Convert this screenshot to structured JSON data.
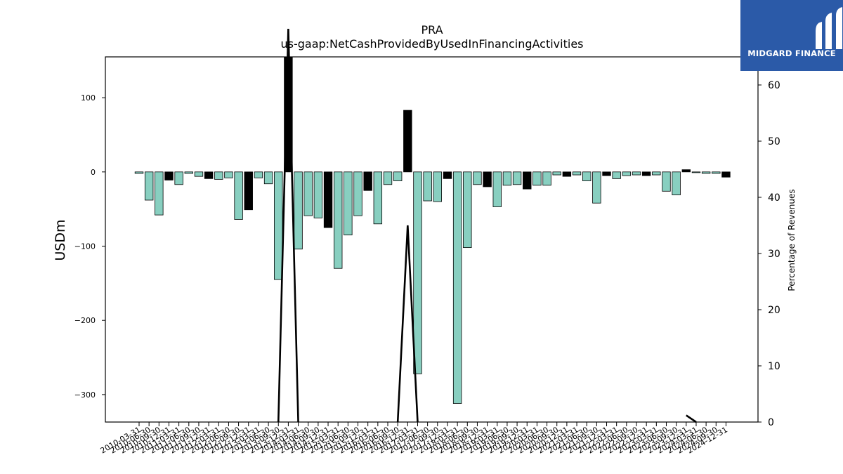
{
  "brand": {
    "name": "MIDGARD FINANCE",
    "bg": "#2b5aa8"
  },
  "chart_data": {
    "type": "bar",
    "title": "PRA",
    "subtitle": "us-gaap:NetCashProvidedByUsedInFinancingActivities",
    "ylabel": "USDm",
    "y2label": "Percentage of Revenues",
    "ylim": [
      -337,
      155
    ],
    "y2lim": [
      0,
      65
    ],
    "yticks": [
      -300,
      -200,
      -100,
      0,
      100
    ],
    "y2ticks": [
      0,
      10,
      20,
      30,
      40,
      50,
      60
    ],
    "colors": {
      "qoq": "#88cfc0",
      "annual": "#000000",
      "edge": "#000000"
    },
    "categories": [
      "2010-03-31",
      "2010-06-30",
      "2010-09-30",
      "2010-12-31",
      "2011-03-31",
      "2011-06-30",
      "2011-09-30",
      "2011-12-31",
      "2012-03-31",
      "2012-06-30",
      "2012-09-30",
      "2012-12-31",
      "2013-03-31",
      "2013-06-30",
      "2013-09-30",
      "2013-12-31",
      "2014-03-31",
      "2014-06-30",
      "2014-09-30",
      "2014-12-31",
      "2015-03-31",
      "2015-06-30",
      "2015-09-30",
      "2015-12-31",
      "2016-03-31",
      "2016-06-30",
      "2016-09-30",
      "2016-12-31",
      "2017-03-31",
      "2017-06-30",
      "2017-09-30",
      "2017-12-31",
      "2018-03-31",
      "2018-06-30",
      "2018-09-30",
      "2018-12-31",
      "2019-03-31",
      "2019-06-30",
      "2019-09-30",
      "2019-12-31",
      "2020-03-31",
      "2020-06-30",
      "2020-09-30",
      "2020-12-31",
      "2021-03-31",
      "2021-06-30",
      "2021-09-30",
      "2021-12-31",
      "2022-03-31",
      "2022-06-30",
      "2022-09-30",
      "2022-12-31",
      "2023-03-31",
      "2023-06-30",
      "2023-09-30",
      "2023-12-31",
      "2024-03-31",
      "2024-06-30",
      "2024-09-30",
      "2024-12-31"
    ],
    "values": [
      -2,
      -38,
      -58,
      -11,
      -17,
      -2,
      -6,
      -9,
      -10,
      -8,
      -64,
      -51,
      -8,
      -16,
      -145,
      155,
      -104,
      -59,
      -62,
      -75,
      -130,
      -85,
      -59,
      -25,
      -70,
      -17,
      -12,
      83,
      -272,
      -39,
      -40,
      -9,
      -312,
      -102,
      -17,
      -20,
      -47,
      -18,
      -17,
      -23,
      -18,
      -18,
      -4,
      -6,
      -4,
      -12,
      -42,
      -5,
      -9,
      -5,
      -4,
      -5,
      -4,
      -26,
      -31,
      3,
      -1,
      -2,
      -2,
      -7
    ],
    "annual_flags": [
      0,
      0,
      0,
      1,
      0,
      0,
      0,
      1,
      0,
      0,
      0,
      1,
      0,
      0,
      0,
      1,
      0,
      0,
      0,
      1,
      0,
      0,
      0,
      1,
      0,
      0,
      0,
      1,
      0,
      0,
      0,
      1,
      0,
      0,
      0,
      1,
      0,
      0,
      0,
      1,
      0,
      0,
      0,
      1,
      0,
      0,
      0,
      1,
      0,
      0,
      0,
      1,
      0,
      0,
      0,
      1,
      0,
      0,
      0,
      1
    ],
    "pct_revenues": [
      null,
      null,
      null,
      null,
      null,
      null,
      null,
      null,
      null,
      null,
      null,
      null,
      null,
      null,
      0,
      70,
      0,
      null,
      null,
      null,
      null,
      null,
      null,
      null,
      null,
      null,
      0,
      35,
      0,
      null,
      null,
      null,
      null,
      null,
      null,
      null,
      null,
      null,
      null,
      null,
      null,
      null,
      null,
      null,
      null,
      null,
      null,
      null,
      null,
      null,
      null,
      null,
      null,
      null,
      null,
      1.2,
      0,
      null,
      null,
      null
    ]
  }
}
